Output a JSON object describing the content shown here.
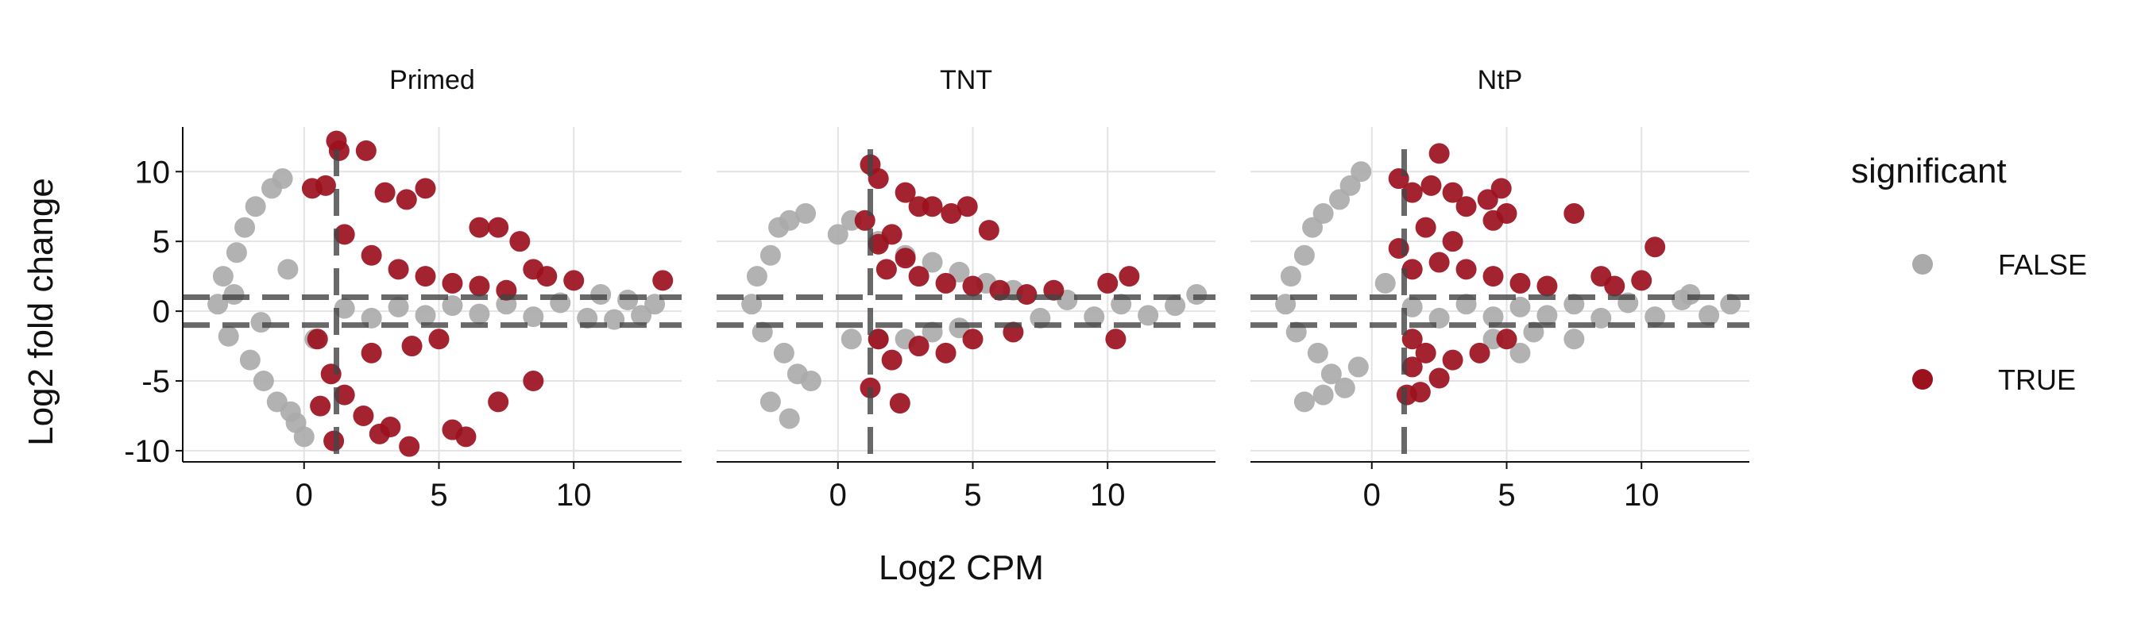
{
  "chart_data": {
    "type": "scatter",
    "xlabel": "Log2 CPM",
    "ylabel": "Log2 fold change",
    "xlim": [
      -4.5,
      14
    ],
    "ylim": [
      -10.8,
      13.2
    ],
    "x_ticks": [
      0,
      5,
      10
    ],
    "y_ticks": [
      -10,
      -5,
      0,
      5,
      10
    ],
    "grid": true,
    "facets": [
      "Primed",
      "TNT",
      "NtP"
    ],
    "reference_lines": {
      "vertical_x": 1.2,
      "horizontal_y": [
        1,
        -1
      ]
    },
    "legend": {
      "title": "significant",
      "position": "right",
      "entries": [
        {
          "label": "FALSE",
          "color": "#aaaaaa"
        },
        {
          "label": "TRUE",
          "color": "#9b111e"
        }
      ]
    },
    "series": [
      {
        "facet": "Primed",
        "significant": "FALSE",
        "points": [
          [
            -3.2,
            0.5
          ],
          [
            -3.0,
            2.5
          ],
          [
            -2.8,
            -1.8
          ],
          [
            -2.5,
            4.2
          ],
          [
            -2.2,
            6.0
          ],
          [
            -2.0,
            -3.5
          ],
          [
            -1.8,
            7.5
          ],
          [
            -1.5,
            -5.0
          ],
          [
            -1.2,
            8.8
          ],
          [
            -1.0,
            -6.5
          ],
          [
            -0.8,
            9.5
          ],
          [
            -0.5,
            -7.2
          ],
          [
            -0.3,
            -8.0
          ],
          [
            0.0,
            -9.0
          ],
          [
            -2.6,
            1.2
          ],
          [
            -1.6,
            -0.8
          ],
          [
            -0.6,
            3.0
          ],
          [
            0.4,
            -2.0
          ],
          [
            1.5,
            0.2
          ],
          [
            2.5,
            -0.5
          ],
          [
            3.5,
            0.3
          ],
          [
            4.5,
            -0.3
          ],
          [
            5.5,
            0.4
          ],
          [
            6.5,
            -0.2
          ],
          [
            7.5,
            0.5
          ],
          [
            8.5,
            -0.4
          ],
          [
            9.5,
            0.6
          ],
          [
            10.5,
            -0.5
          ],
          [
            11.0,
            1.2
          ],
          [
            11.5,
            -0.6
          ],
          [
            12.0,
            0.8
          ],
          [
            12.5,
            -0.3
          ],
          [
            13.0,
            0.5
          ]
        ]
      },
      {
        "facet": "Primed",
        "significant": "TRUE",
        "points": [
          [
            0.3,
            8.8
          ],
          [
            0.8,
            9.0
          ],
          [
            1.2,
            12.2
          ],
          [
            1.3,
            11.5
          ],
          [
            2.3,
            11.5
          ],
          [
            3.0,
            8.5
          ],
          [
            3.8,
            8.0
          ],
          [
            4.5,
            8.8
          ],
          [
            6.5,
            6.0
          ],
          [
            7.2,
            6.0
          ],
          [
            8.0,
            5.0
          ],
          [
            8.5,
            3.0
          ],
          [
            9.0,
            2.5
          ],
          [
            10.0,
            2.2
          ],
          [
            13.3,
            2.2
          ],
          [
            1.5,
            5.5
          ],
          [
            2.5,
            4.0
          ],
          [
            3.5,
            3.0
          ],
          [
            4.5,
            2.5
          ],
          [
            5.5,
            2.0
          ],
          [
            6.5,
            1.8
          ],
          [
            7.5,
            1.5
          ],
          [
            0.5,
            -2.0
          ],
          [
            1.0,
            -4.5
          ],
          [
            1.5,
            -6.0
          ],
          [
            2.2,
            -7.5
          ],
          [
            2.8,
            -8.8
          ],
          [
            3.2,
            -8.3
          ],
          [
            3.9,
            -9.7
          ],
          [
            5.5,
            -8.5
          ],
          [
            6.0,
            -9.0
          ],
          [
            7.2,
            -6.5
          ],
          [
            8.5,
            -5.0
          ],
          [
            1.1,
            -9.3
          ],
          [
            0.6,
            -6.8
          ],
          [
            2.5,
            -3.0
          ],
          [
            4.0,
            -2.5
          ],
          [
            5.0,
            -2.0
          ]
        ]
      },
      {
        "facet": "TNT",
        "significant": "FALSE",
        "points": [
          [
            -3.2,
            0.5
          ],
          [
            -3.0,
            2.5
          ],
          [
            -2.8,
            -1.5
          ],
          [
            -2.5,
            4.0
          ],
          [
            -2.2,
            6.0
          ],
          [
            -2.0,
            -3.0
          ],
          [
            -1.8,
            6.5
          ],
          [
            -1.5,
            -4.5
          ],
          [
            -1.2,
            7.0
          ],
          [
            -1.0,
            -5.0
          ],
          [
            -2.5,
            -6.5
          ],
          [
            -1.8,
            -7.7
          ],
          [
            0.0,
            5.5
          ],
          [
            0.5,
            6.5
          ],
          [
            1.5,
            5.0
          ],
          [
            2.5,
            4.0
          ],
          [
            3.5,
            3.5
          ],
          [
            4.5,
            2.8
          ],
          [
            5.5,
            2.0
          ],
          [
            6.5,
            1.5
          ],
          [
            0.5,
            -2.0
          ],
          [
            1.5,
            -2.0
          ],
          [
            2.5,
            -2.0
          ],
          [
            3.5,
            -1.5
          ],
          [
            4.5,
            -1.2
          ],
          [
            7.5,
            -0.5
          ],
          [
            8.5,
            0.8
          ],
          [
            9.5,
            -0.4
          ],
          [
            10.5,
            0.5
          ],
          [
            11.5,
            -0.3
          ],
          [
            12.5,
            0.4
          ],
          [
            13.3,
            1.2
          ]
        ]
      },
      {
        "facet": "TNT",
        "significant": "TRUE",
        "points": [
          [
            1.2,
            10.5
          ],
          [
            1.5,
            9.5
          ],
          [
            2.5,
            8.5
          ],
          [
            3.0,
            7.5
          ],
          [
            3.5,
            7.5
          ],
          [
            4.2,
            7.0
          ],
          [
            4.8,
            7.5
          ],
          [
            5.6,
            5.8
          ],
          [
            1.0,
            6.5
          ],
          [
            2.0,
            5.5
          ],
          [
            1.5,
            4.8
          ],
          [
            2.5,
            3.8
          ],
          [
            1.8,
            3.0
          ],
          [
            3.0,
            2.5
          ],
          [
            4.0,
            2.0
          ],
          [
            5.0,
            1.8
          ],
          [
            6.0,
            1.5
          ],
          [
            7.0,
            1.2
          ],
          [
            8.0,
            1.5
          ],
          [
            10.0,
            2.0
          ],
          [
            10.8,
            2.5
          ],
          [
            1.5,
            -2.0
          ],
          [
            2.0,
            -3.5
          ],
          [
            1.2,
            -5.5
          ],
          [
            2.3,
            -6.6
          ],
          [
            3.0,
            -2.5
          ],
          [
            4.0,
            -3.0
          ],
          [
            5.0,
            -2.0
          ],
          [
            6.5,
            -1.5
          ],
          [
            10.3,
            -2.0
          ]
        ]
      },
      {
        "facet": "NtP",
        "significant": "FALSE",
        "points": [
          [
            -3.2,
            0.5
          ],
          [
            -3.0,
            2.5
          ],
          [
            -2.8,
            -1.5
          ],
          [
            -2.5,
            4.0
          ],
          [
            -2.2,
            6.0
          ],
          [
            -2.0,
            -3.0
          ],
          [
            -1.8,
            7.0
          ],
          [
            -1.5,
            -4.5
          ],
          [
            -1.2,
            8.0
          ],
          [
            -0.8,
            9.0
          ],
          [
            -0.4,
            10.0
          ],
          [
            -1.0,
            -5.5
          ],
          [
            -2.5,
            -6.5
          ],
          [
            -1.8,
            -6.0
          ],
          [
            -0.5,
            -4.0
          ],
          [
            0.5,
            2.0
          ],
          [
            1.5,
            0.3
          ],
          [
            2.5,
            -0.5
          ],
          [
            3.5,
            0.5
          ],
          [
            4.5,
            -0.4
          ],
          [
            5.5,
            0.3
          ],
          [
            6.5,
            -0.3
          ],
          [
            7.5,
            0.5
          ],
          [
            8.5,
            -0.5
          ],
          [
            9.5,
            0.6
          ],
          [
            10.5,
            -0.4
          ],
          [
            11.5,
            0.8
          ],
          [
            12.5,
            -0.3
          ],
          [
            13.3,
            0.5
          ],
          [
            4.5,
            -2.0
          ],
          [
            5.5,
            -3.0
          ],
          [
            6.0,
            -1.5
          ],
          [
            7.5,
            -2.0
          ],
          [
            11.8,
            1.2
          ]
        ]
      },
      {
        "facet": "NtP",
        "significant": "TRUE",
        "points": [
          [
            1.0,
            9.5
          ],
          [
            1.5,
            8.5
          ],
          [
            2.5,
            11.3
          ],
          [
            2.2,
            9.0
          ],
          [
            3.0,
            8.5
          ],
          [
            3.5,
            7.5
          ],
          [
            4.3,
            8.0
          ],
          [
            4.8,
            8.8
          ],
          [
            5.0,
            7.0
          ],
          [
            4.5,
            6.5
          ],
          [
            7.5,
            7.0
          ],
          [
            2.0,
            6.0
          ],
          [
            3.0,
            5.0
          ],
          [
            1.0,
            4.5
          ],
          [
            2.5,
            3.5
          ],
          [
            1.5,
            3.0
          ],
          [
            3.5,
            3.0
          ],
          [
            4.5,
            2.5
          ],
          [
            5.5,
            2.0
          ],
          [
            6.5,
            1.8
          ],
          [
            8.5,
            2.5
          ],
          [
            9.0,
            1.8
          ],
          [
            10.0,
            2.2
          ],
          [
            10.5,
            4.6
          ],
          [
            1.5,
            -2.0
          ],
          [
            2.0,
            -3.0
          ],
          [
            1.5,
            -4.0
          ],
          [
            1.8,
            -5.8
          ],
          [
            1.3,
            -6.0
          ],
          [
            2.5,
            -4.8
          ],
          [
            3.0,
            -3.5
          ],
          [
            4.0,
            -3.0
          ],
          [
            5.0,
            -2.0
          ]
        ]
      }
    ]
  }
}
